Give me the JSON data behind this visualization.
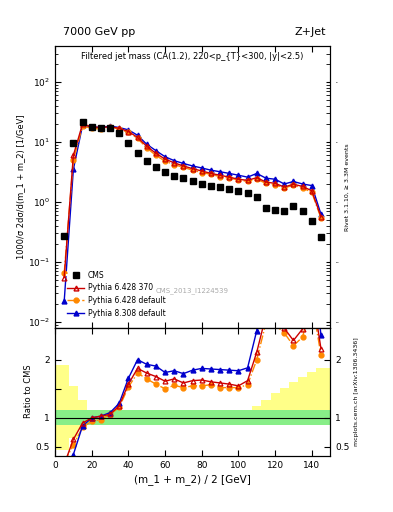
{
  "title_top": "7000 GeV pp",
  "title_right": "Z+Jet",
  "plot_title": "Filtered jet mass (CA(1.2), 220<p_{T}<300, |y|<2.5)",
  "xlabel": "(m_1 + m_2) / 2 [GeV]",
  "ylabel_main": "1000/σ 2dσ/d(m_1 + m_2) [1/GeV]",
  "ylabel_ratio": "Ratio to CMS",
  "ylabel_right_main": "Rivet 3.1.10, ≥ 3.3M events",
  "ylabel_right_ratio": "mcplots.cern.ch [arXiv:1306.3436]",
  "watermark": "CMS_2013_I1224539",
  "xlim": [
    0,
    150
  ],
  "ylim_main": [
    0.008,
    400
  ],
  "ylim_ratio": [
    0.35,
    2.55
  ],
  "x_cms": [
    5,
    10,
    15,
    20,
    25,
    30,
    35,
    40,
    45,
    50,
    55,
    60,
    65,
    70,
    75,
    80,
    85,
    90,
    95,
    100,
    105,
    110,
    115,
    120,
    125,
    130,
    135,
    140,
    145
  ],
  "y_cms": [
    0.27,
    9.5,
    22,
    18,
    17,
    17,
    14,
    9.5,
    6.5,
    4.8,
    3.8,
    3.2,
    2.7,
    2.5,
    2.2,
    2.0,
    1.85,
    1.75,
    1.65,
    1.55,
    1.4,
    1.2,
    0.78,
    0.75,
    0.7,
    0.85,
    0.72,
    0.48,
    0.26
  ],
  "x_py6_370": [
    5,
    10,
    15,
    20,
    25,
    30,
    35,
    40,
    45,
    50,
    55,
    60,
    65,
    70,
    75,
    80,
    85,
    90,
    95,
    100,
    105,
    110,
    115,
    120,
    125,
    130,
    135,
    140,
    145
  ],
  "y_py6_370": [
    0.055,
    6.0,
    20,
    18,
    17.5,
    18,
    17,
    15,
    12,
    8.5,
    6.5,
    5.2,
    4.5,
    4.0,
    3.6,
    3.3,
    3.0,
    2.8,
    2.6,
    2.4,
    2.3,
    2.55,
    2.15,
    2.05,
    1.78,
    1.98,
    1.82,
    1.54,
    0.57
  ],
  "x_py6_def": [
    5,
    10,
    15,
    20,
    25,
    30,
    35,
    40,
    45,
    50,
    55,
    60,
    65,
    70,
    75,
    80,
    85,
    90,
    95,
    100,
    105,
    110,
    115,
    120,
    125,
    130,
    135,
    140,
    145
  ],
  "y_py6_def": [
    0.065,
    5.0,
    18.5,
    17,
    16.5,
    18,
    16.5,
    14.5,
    11.5,
    8.0,
    6.0,
    4.8,
    4.2,
    3.8,
    3.4,
    3.1,
    2.9,
    2.65,
    2.5,
    2.35,
    2.2,
    2.4,
    2.05,
    1.95,
    1.72,
    1.9,
    1.72,
    1.45,
    0.54
  ],
  "x_py8_def": [
    5,
    10,
    15,
    20,
    25,
    30,
    35,
    40,
    45,
    50,
    55,
    60,
    65,
    70,
    75,
    80,
    85,
    90,
    95,
    100,
    105,
    110,
    115,
    120,
    125,
    130,
    135,
    140,
    145
  ],
  "y_py8_def": [
    0.022,
    3.5,
    19,
    18,
    17.5,
    18.5,
    17.5,
    16,
    13,
    9.2,
    7.2,
    5.7,
    4.9,
    4.4,
    4.0,
    3.7,
    3.4,
    3.2,
    3.0,
    2.8,
    2.6,
    3.0,
    2.5,
    2.4,
    2.0,
    2.2,
    2.0,
    1.88,
    0.63
  ],
  "ratio_py6_370": [
    0.2,
    0.63,
    0.91,
    1.0,
    1.03,
    1.06,
    1.21,
    1.58,
    1.85,
    1.77,
    1.71,
    1.63,
    1.67,
    1.6,
    1.64,
    1.65,
    1.62,
    1.6,
    1.58,
    1.55,
    1.64,
    2.13,
    2.76,
    2.73,
    2.54,
    2.33,
    2.53,
    3.21,
    2.19
  ],
  "ratio_py6_def": [
    0.24,
    0.53,
    0.84,
    0.94,
    0.97,
    1.06,
    1.18,
    1.53,
    1.77,
    1.67,
    1.58,
    1.5,
    1.56,
    1.52,
    1.55,
    1.55,
    1.57,
    1.52,
    1.52,
    1.52,
    1.57,
    2.0,
    2.63,
    2.6,
    2.46,
    2.24,
    2.39,
    3.02,
    2.08
  ],
  "ratio_py8_def": [
    0.08,
    0.37,
    0.86,
    1.0,
    1.03,
    1.09,
    1.25,
    1.68,
    2.0,
    1.92,
    1.89,
    1.78,
    1.81,
    1.76,
    1.82,
    1.85,
    1.84,
    1.83,
    1.82,
    1.81,
    1.86,
    2.5,
    3.21,
    3.2,
    2.86,
    2.59,
    2.78,
    3.92,
    2.42
  ],
  "color_cms": "#000000",
  "color_py6_370": "#cc0000",
  "color_py6_def": "#ff8800",
  "color_py8_def": "#0000cc",
  "yellow_band_x": [
    0,
    7.5,
    12.5,
    17.5,
    22.5,
    27.5,
    32.5,
    37.5,
    42.5,
    47.5,
    52.5,
    57.5,
    62.5,
    67.5,
    72.5,
    77.5,
    82.5,
    87.5,
    92.5,
    97.5,
    102.5,
    107.5,
    112.5,
    117.5,
    122.5,
    127.5,
    132.5,
    137.5,
    142.5,
    150
  ],
  "yellow_lo": [
    0.45,
    0.65,
    0.8,
    0.87,
    0.87,
    0.87,
    0.87,
    0.87,
    0.87,
    0.87,
    0.87,
    0.87,
    0.87,
    0.87,
    0.87,
    0.87,
    0.87,
    0.87,
    0.87,
    0.87,
    0.87,
    0.87,
    0.87,
    0.87,
    0.87,
    0.87,
    0.87,
    0.87,
    0.87,
    0.87
  ],
  "yellow_hi": [
    1.9,
    1.55,
    1.3,
    1.13,
    1.13,
    1.13,
    1.13,
    1.13,
    1.13,
    1.13,
    1.13,
    1.13,
    1.13,
    1.13,
    1.13,
    1.13,
    1.13,
    1.13,
    1.13,
    1.13,
    1.13,
    1.2,
    1.3,
    1.42,
    1.52,
    1.62,
    1.7,
    1.78,
    1.85,
    1.85
  ],
  "green_lo": [
    0.87,
    0.87,
    0.87,
    0.87,
    0.87,
    0.87,
    0.87,
    0.87,
    0.87,
    0.87,
    0.87,
    0.87,
    0.87,
    0.87,
    0.87,
    0.87,
    0.87,
    0.87,
    0.87,
    0.87,
    0.87,
    0.87,
    0.87,
    0.87,
    0.87,
    0.87,
    0.87,
    0.87,
    0.87,
    0.87
  ],
  "green_hi": [
    1.13,
    1.13,
    1.13,
    1.13,
    1.13,
    1.13,
    1.13,
    1.13,
    1.13,
    1.13,
    1.13,
    1.13,
    1.13,
    1.13,
    1.13,
    1.13,
    1.13,
    1.13,
    1.13,
    1.13,
    1.13,
    1.13,
    1.13,
    1.13,
    1.13,
    1.13,
    1.13,
    1.13,
    1.13,
    1.13
  ]
}
